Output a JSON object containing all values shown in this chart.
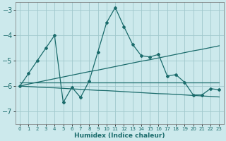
{
  "xlabel": "Humidex (Indice chaleur)",
  "background_color": "#cce9ec",
  "grid_color": "#a0c8cc",
  "line_color": "#1a6b6b",
  "x": [
    0,
    1,
    2,
    3,
    4,
    5,
    6,
    7,
    8,
    9,
    10,
    11,
    12,
    13,
    14,
    15,
    16,
    17,
    18,
    19,
    20,
    21,
    22,
    23
  ],
  "y_main": [
    -6.0,
    -5.5,
    -5.0,
    -4.5,
    -4.0,
    -6.65,
    -6.05,
    -6.45,
    -5.8,
    -4.65,
    -3.5,
    -2.9,
    -3.65,
    -4.35,
    -4.8,
    -4.85,
    -4.75,
    -5.6,
    -5.55,
    -5.85,
    -6.35,
    -6.35,
    -6.1,
    -6.15
  ],
  "y_line1": [
    -5.85,
    -5.85,
    -5.85,
    -5.85,
    -5.85,
    -5.85,
    -5.85,
    -5.85,
    -5.85,
    -5.85,
    -5.85,
    -5.85,
    -5.85,
    -5.85,
    -5.85,
    -5.85,
    -5.85,
    -5.85,
    -5.85,
    -5.85,
    -5.85,
    -5.85,
    -5.85,
    -5.85
  ],
  "y_line2": [
    -6.0,
    -5.92,
    -5.85,
    -5.78,
    -5.71,
    -5.64,
    -5.57,
    -5.5,
    -5.43,
    -5.37,
    -5.3,
    -5.23,
    -5.16,
    -5.09,
    -5.02,
    -4.96,
    -4.89,
    -4.82,
    -4.75,
    -4.68,
    -4.61,
    -4.55,
    -4.48,
    -4.41
  ],
  "y_line3": [
    -6.0,
    -6.02,
    -6.04,
    -6.06,
    -6.07,
    -6.09,
    -6.11,
    -6.13,
    -6.15,
    -6.17,
    -6.18,
    -6.2,
    -6.22,
    -6.24,
    -6.26,
    -6.28,
    -6.3,
    -6.31,
    -6.33,
    -6.35,
    -6.37,
    -6.39,
    -6.41,
    -6.43
  ],
  "ylim": [
    -7.5,
    -2.7
  ],
  "xlim": [
    -0.5,
    23.5
  ],
  "yticks": [
    -7,
    -6,
    -5,
    -4,
    -3
  ],
  "xtick_labels": [
    "0",
    "1",
    "2",
    "3",
    "4",
    "5",
    "6",
    "7",
    "8",
    "9",
    "10",
    "11",
    "12",
    "13",
    "14",
    "15",
    "16",
    "17",
    "18",
    "19",
    "20",
    "21",
    "22",
    "23"
  ]
}
